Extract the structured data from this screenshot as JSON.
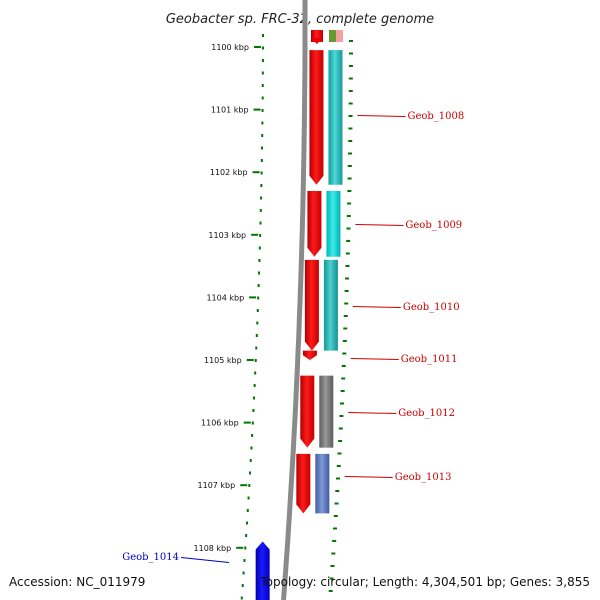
{
  "title": "Geobacter sp. FRC-32, complete genome",
  "footer": {
    "accession": "Accession: NC_011979",
    "topology": "Topology: circular; Length: 4,304,501 bp; Genes: 3,855"
  },
  "scale": {
    "unit": "kbp",
    "ticks": [
      "1100 kbp",
      "1101 kbp",
      "1102 kbp",
      "1103 kbp",
      "1104 kbp",
      "1105 kbp",
      "1106 kbp",
      "1107 kbp",
      "1108 kbp"
    ]
  },
  "genes": [
    {
      "name": "Geob_1008",
      "strand": "forward",
      "start_kbp": 1100.05,
      "end_kbp": 1102.2,
      "cog_color": "#19c8c8",
      "label_color": "#cc0000"
    },
    {
      "name": "Geob_1009",
      "strand": "forward",
      "start_kbp": 1102.3,
      "end_kbp": 1103.35,
      "cog_color": "#00e6e6",
      "label_color": "#cc0000"
    },
    {
      "name": "Geob_1010",
      "strand": "forward",
      "start_kbp": 1103.4,
      "end_kbp": 1104.85,
      "cog_color": "#18c0c0",
      "label_color": "#cc0000"
    },
    {
      "name": "Geob_1011",
      "strand": "forward",
      "start_kbp": 1104.85,
      "end_kbp": 1105.0,
      "cog_color": "#ffffff",
      "label_color": "#cc0000"
    },
    {
      "name": "Geob_1012",
      "strand": "forward",
      "start_kbp": 1105.25,
      "end_kbp": 1106.4,
      "cog_color": "#777777",
      "label_color": "#cc0000"
    },
    {
      "name": "Geob_1013",
      "strand": "forward",
      "start_kbp": 1106.5,
      "end_kbp": 1107.45,
      "cog_color": "#5577cc",
      "label_color": "#cc0000"
    },
    {
      "name": "Geob_1014",
      "strand": "reverse",
      "start_kbp": 1107.9,
      "end_kbp": 1109.5,
      "cog_color": "#0000ee",
      "label_color": "#0000cc"
    }
  ],
  "colors": {
    "forward_cds": "#ee0000",
    "reverse_cds": "#0000ee",
    "backbone": "#888888",
    "tick": "#007700",
    "prev_gene_cog": "#669933"
  }
}
